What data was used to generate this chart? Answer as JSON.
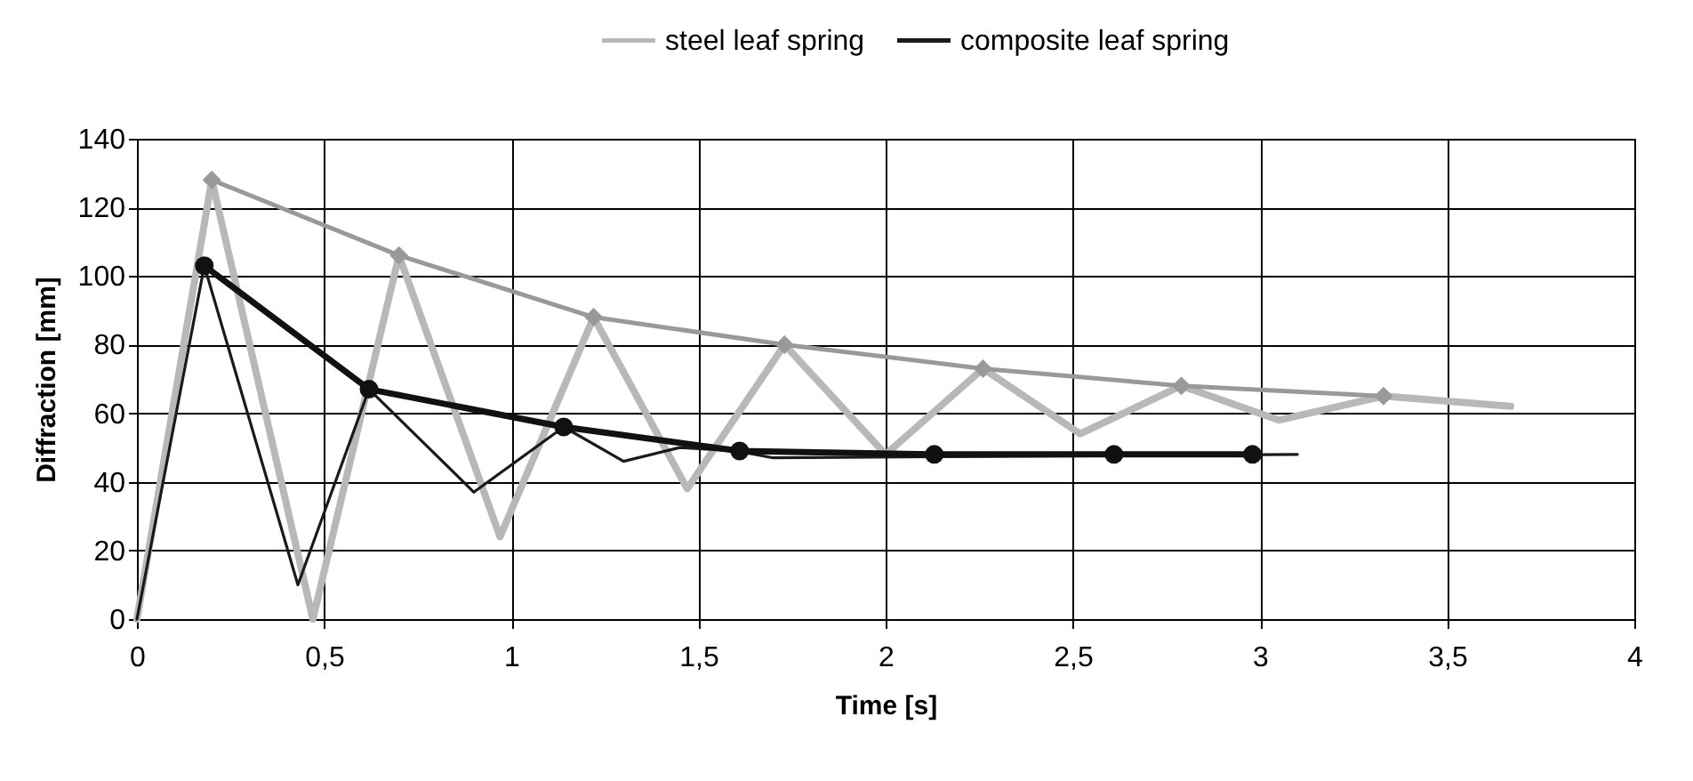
{
  "chart_data": {
    "type": "line",
    "xlabel": "Time [s]",
    "ylabel": "Diffraction [mm]",
    "xlim": [
      0,
      4
    ],
    "xticks": [
      0,
      {
        "value": 0.5,
        "label": "0,5"
      },
      1,
      {
        "value": 1.5,
        "label": "1,5"
      },
      2,
      {
        "value": 2.5,
        "label": "2,5"
      },
      3,
      {
        "value": 3.5,
        "label": "3,5"
      },
      4
    ],
    "ylim": [
      0,
      140
    ],
    "yticks": [
      0,
      20,
      40,
      60,
      80,
      100,
      120,
      140
    ],
    "grid": true,
    "legend": "top",
    "line_style": "solid",
    "series": [
      {
        "name": "steel leaf spring",
        "color": "#b8b8b8",
        "marker": "none",
        "x": [
          0,
          0.2,
          0.47,
          0.7,
          0.97,
          1.22,
          1.47,
          1.73,
          2.0,
          2.26,
          2.52,
          2.79,
          3.05,
          3.33,
          3.67
        ],
        "values": [
          0,
          128,
          0,
          106,
          24,
          88,
          38,
          80,
          48,
          73,
          54,
          68,
          58,
          65,
          62
        ]
      },
      {
        "name": "composite leaf spring",
        "color": "#1a1a1a",
        "marker": "none",
        "x": [
          0,
          0.18,
          0.43,
          0.62,
          0.9,
          1.14,
          1.3,
          1.45,
          1.6,
          1.7,
          3.1
        ],
        "values": [
          0,
          103,
          10,
          67,
          37,
          56,
          46,
          50,
          49,
          47,
          48
        ]
      },
      {
        "color": "#999999",
        "marker": "diamond",
        "x": [
          0.2,
          0.7,
          1.22,
          1.73,
          2.26,
          2.79,
          3.33
        ],
        "values": [
          128,
          106,
          88,
          80,
          73,
          68,
          65
        ]
      },
      {
        "color": "#111111",
        "marker": "circle",
        "x": [
          0.18,
          0.62,
          1.14,
          1.61,
          2.13,
          2.61,
          2.98
        ],
        "values": [
          103,
          67,
          56,
          49,
          48,
          48,
          48
        ]
      }
    ]
  }
}
